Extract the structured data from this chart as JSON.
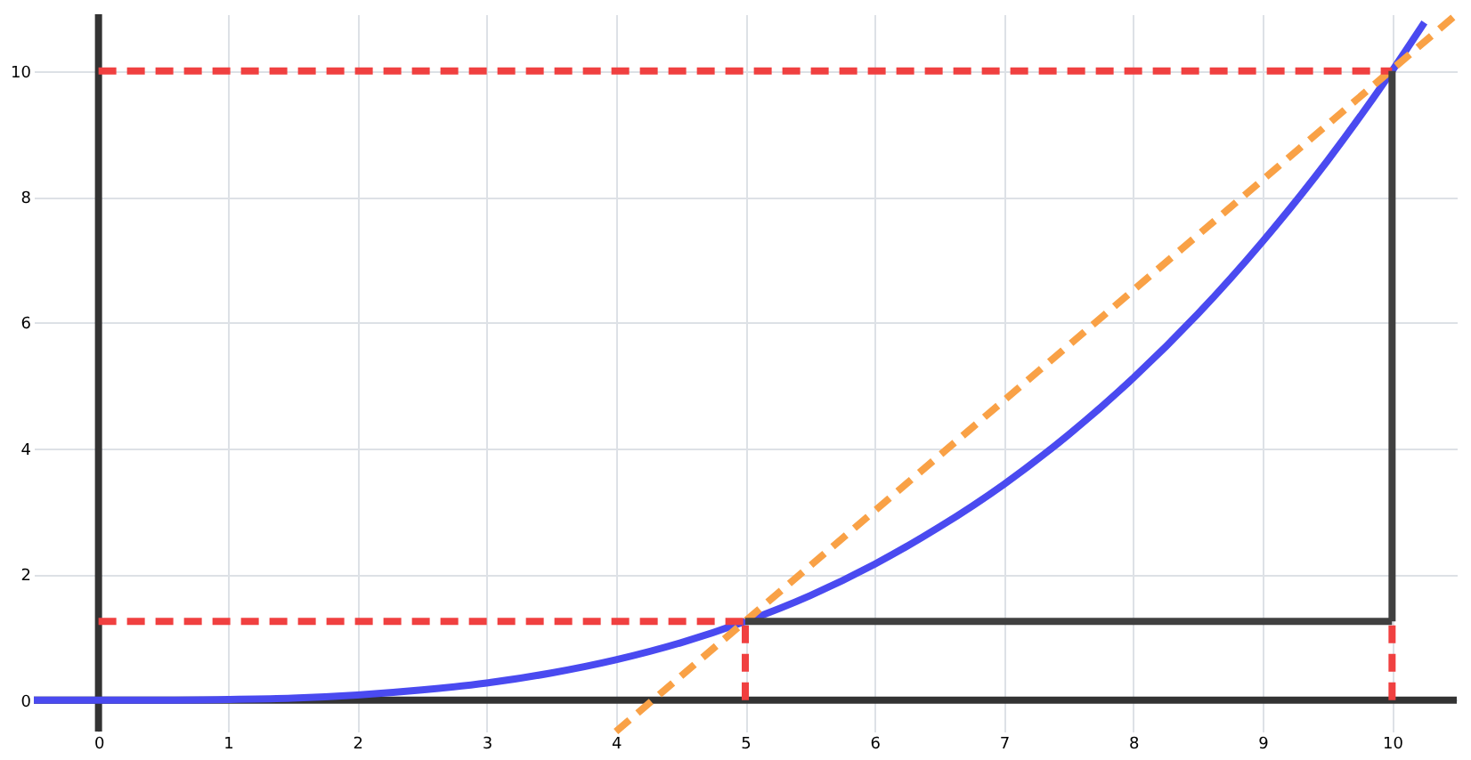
{
  "chart_data": {
    "type": "line",
    "xlim": [
      -0.5,
      10.5
    ],
    "ylim": [
      -0.5,
      10.9
    ],
    "xticks": [
      0,
      1,
      2,
      3,
      4,
      5,
      6,
      7,
      8,
      9,
      10
    ],
    "yticks": [
      0,
      2,
      4,
      6,
      8,
      10
    ],
    "grid": true,
    "marker": "none",
    "series": [
      {
        "color": "#333333",
        "line_style": "solid",
        "x": [
          -0.5,
          10.5
        ],
        "values": [
          0,
          0
        ]
      },
      {
        "color": "#333333",
        "line_style": "solid",
        "x": [
          0,
          0
        ],
        "values": [
          -0.5,
          10.9
        ]
      },
      {
        "color": "#4a4af0",
        "line_style": "solid",
        "x": [
          -0.5,
          0,
          0.5,
          1,
          1.5,
          2,
          2.5,
          3,
          3.5,
          4,
          4.5,
          5,
          5.5,
          6,
          6.5,
          7,
          7.5,
          8,
          8.5,
          9,
          9.5,
          10,
          10.25
        ],
        "values": [
          0,
          0,
          0,
          0.01,
          0.03,
          0.08,
          0.16,
          0.27,
          0.43,
          0.64,
          0.91,
          1.25,
          1.66,
          2.16,
          2.75,
          3.43,
          4.22,
          5.12,
          6.14,
          7.29,
          8.57,
          10,
          10.77
        ]
      },
      {
        "color": "#f9a146",
        "line_style": "dashed",
        "x": [
          4,
          10.5
        ],
        "values": [
          -0.5,
          10.9
        ]
      },
      {
        "color": "#f04040",
        "line_style": "dashed",
        "x": [
          0,
          10
        ],
        "values": [
          10,
          10
        ]
      },
      {
        "color": "#f04040",
        "line_style": "dashed",
        "x": [
          0,
          5
        ],
        "values": [
          1.25,
          1.25
        ]
      },
      {
        "color": "#f04040",
        "line_style": "dashed",
        "x": [
          5,
          5
        ],
        "values": [
          0,
          1.25
        ]
      },
      {
        "color": "#f04040",
        "line_style": "dashed",
        "x": [
          10,
          10
        ],
        "values": [
          0,
          1.25
        ]
      },
      {
        "color": "#404040",
        "line_style": "solid",
        "x": [
          5,
          10
        ],
        "values": [
          1.25,
          1.25
        ]
      },
      {
        "color": "#404040",
        "line_style": "solid",
        "x": [
          10,
          10
        ],
        "values": [
          1.25,
          10
        ]
      }
    ]
  }
}
